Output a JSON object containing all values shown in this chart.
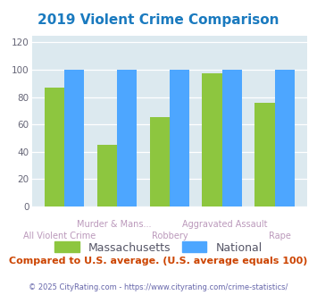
{
  "title": "2019 Violent Crime Comparison",
  "title_color": "#1a7abf",
  "categories": [
    "All Violent Crime",
    "Murder & Mans...",
    "Robbery",
    "Aggravated Assault",
    "Rape"
  ],
  "massachusetts_values": [
    87,
    45,
    65,
    97,
    76
  ],
  "national_values": [
    100,
    100,
    100,
    100,
    100
  ],
  "ma_color": "#8dc63f",
  "nat_color": "#4da6ff",
  "ylim": [
    0,
    125
  ],
  "yticks": [
    0,
    20,
    40,
    60,
    80,
    100,
    120
  ],
  "plot_bg": "#dce9ef",
  "legend_ma": "Massachusetts",
  "legend_nat": "National",
  "subtitle": "Compared to U.S. average. (U.S. average equals 100)",
  "subtitle_color": "#cc4400",
  "footer": "© 2025 CityRating.com - https://www.cityrating.com/crime-statistics/",
  "footer_color": "#6666aa",
  "tick_label_color": "#bb99bb",
  "bar_width": 0.38
}
